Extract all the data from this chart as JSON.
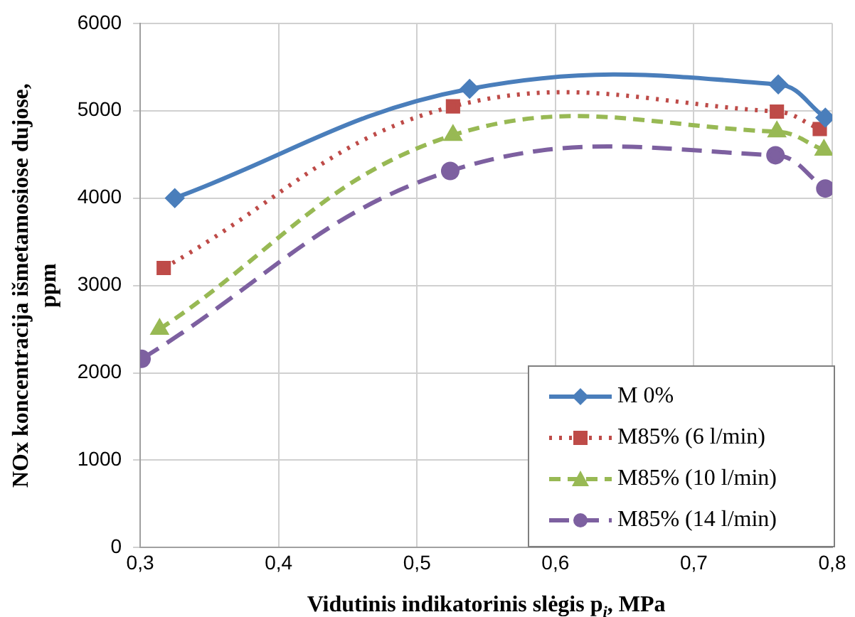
{
  "chart_data": {
    "type": "line",
    "xlabel": "Vidutinis indikatorinis slėgis p$_{i}$, MPa",
    "ylabel": "NOx koncentracija išmetamosiose dujose,\nppm",
    "xlim": [
      0.3,
      0.8
    ],
    "xticks": [
      {
        "value": 0.3,
        "label": "0,3"
      },
      {
        "value": 0.4,
        "label": "0,4"
      },
      {
        "value": 0.5,
        "label": "0,5"
      },
      {
        "value": 0.6,
        "label": "0,6"
      },
      {
        "value": 0.7,
        "label": "0,7"
      },
      {
        "value": 0.8,
        "label": "0,8"
      }
    ],
    "ylim": [
      0,
      6000
    ],
    "yticks": [
      0,
      1000,
      2000,
      3000,
      4000,
      5000,
      6000
    ],
    "grid": true,
    "legend": "bottom right",
    "series": [
      {
        "name": "M 0%",
        "color": "#4a7ebb",
        "x": [
          0.325,
          0.538,
          0.761,
          0.795
        ],
        "values": [
          4000,
          5250,
          5300,
          4920
        ],
        "marker": "diamond",
        "line_style": "solid"
      },
      {
        "name": "M85% (6 l/min)",
        "color": "#be4b48",
        "x": [
          0.317,
          0.526,
          0.76,
          0.791
        ],
        "values": [
          3200,
          5050,
          4990,
          4790
        ],
        "marker": "square",
        "line_style": "dotted"
      },
      {
        "name": "M85% (10 l/min)",
        "color": "#98b954",
        "x": [
          0.314,
          0.526,
          0.76,
          0.794
        ],
        "values": [
          2500,
          4720,
          4760,
          4550
        ],
        "marker": "triangle",
        "line_style": "dashed"
      },
      {
        "name": "M85% (14 l/min)",
        "color": "#7d60a0",
        "x": [
          0.301,
          0.524,
          0.759,
          0.795
        ],
        "values": [
          2160,
          4310,
          4490,
          4110
        ],
        "marker": "circle",
        "line_style": "dashed"
      }
    ]
  }
}
